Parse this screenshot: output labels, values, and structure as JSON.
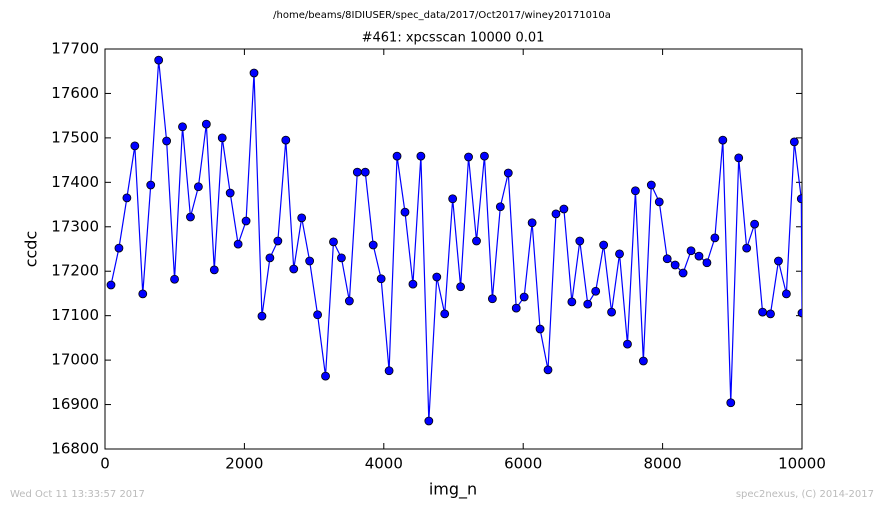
{
  "chart_data": {
    "type": "line",
    "super_title": "/home/beams/8IDIUSER/spec_data/2017/Oct2017/winey20171010a",
    "title": "#461: xpcsscan 10000 0.01",
    "x_label": "img_n",
    "y_label": "ccdc",
    "footer_left": "Wed Oct 11 13:33:57 2017",
    "footer_right": "spec2nexus, (C) 2014-2017",
    "xlim": [
      0,
      10000
    ],
    "xticks": [
      0,
      2000,
      4000,
      6000,
      8000,
      10000
    ],
    "ylim": [
      16800,
      17700
    ],
    "yticks": [
      16800,
      16900,
      17000,
      17100,
      17200,
      17300,
      17400,
      17500,
      17600,
      17700
    ],
    "grid": false,
    "x": [
      86,
      200,
      314,
      428,
      542,
      656,
      770,
      884,
      998,
      1112,
      1226,
      1340,
      1454,
      1568,
      1682,
      1796,
      1910,
      2024,
      2138,
      2252,
      2366,
      2480,
      2594,
      2708,
      2822,
      2936,
      3050,
      3164,
      3278,
      3392,
      3506,
      3620,
      3734,
      3848,
      3962,
      4076,
      4190,
      4304,
      4418,
      4532,
      4646,
      4760,
      4874,
      4988,
      5102,
      5216,
      5330,
      5444,
      5558,
      5672,
      5786,
      5900,
      6014,
      6128,
      6242,
      6356,
      6470,
      6584,
      6698,
      6812,
      6926,
      7040,
      7154,
      7268,
      7382,
      7496,
      7610,
      7724,
      7838,
      7952,
      8066,
      8180,
      8294,
      8408,
      8522,
      8636,
      8750,
      8864,
      8978,
      9092,
      9206,
      9320,
      9434,
      9548,
      9662,
      9776,
      9890,
      9990,
      10000
    ],
    "series": [
      {
        "name": "ccdc",
        "color": "#0000ff",
        "marker_edge": "#000000",
        "values": [
          17169,
          17252,
          17365,
          17482,
          17149,
          17394,
          17675,
          17493,
          17182,
          17525,
          17322,
          17390,
          17531,
          17203,
          17500,
          17376,
          17261,
          17313,
          17646,
          17099,
          17230,
          17268,
          17495,
          17205,
          17320,
          17223,
          17102,
          16964,
          17266,
          17230,
          17133,
          17423,
          17423,
          17259,
          17183,
          16976,
          17459,
          17333,
          17171,
          17459,
          16863,
          17187,
          17104,
          17363,
          17165,
          17457,
          17268,
          17459,
          17138,
          17345,
          17421,
          17117,
          17142,
          17309,
          17070,
          16978,
          17329,
          17340,
          17131,
          17268,
          17126,
          17155,
          17259,
          17108,
          17239,
          17036,
          17381,
          16998,
          17394,
          17356,
          17228,
          17214,
          17196,
          17246,
          17234,
          17219,
          17275,
          17495,
          16904,
          17455,
          17252,
          17306,
          17108,
          17104,
          17223,
          17149,
          17491,
          17363,
          17106
        ]
      }
    ]
  }
}
